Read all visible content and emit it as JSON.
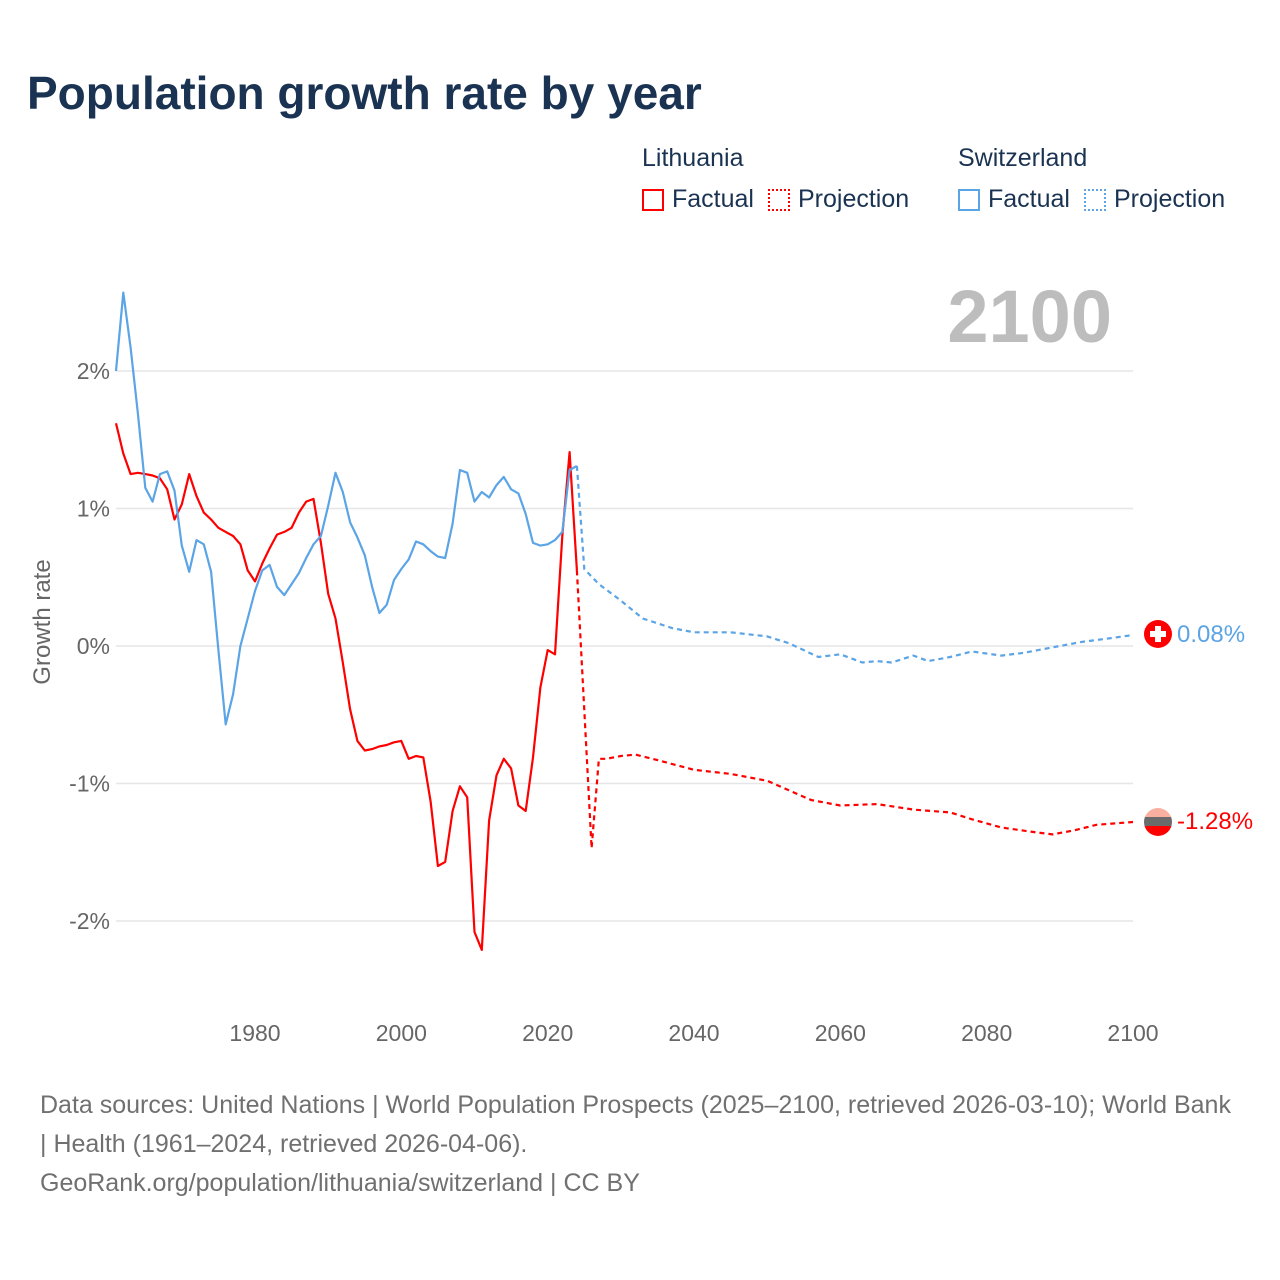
{
  "title": "Population growth rate by year",
  "legend": {
    "groups": [
      {
        "name": "Lithuania",
        "factual": "Factual",
        "projection": "Projection",
        "color": "#ff0000"
      },
      {
        "name": "Switzerland",
        "factual": "Factual",
        "projection": "Projection",
        "color": "#5ba4e6"
      }
    ]
  },
  "year_label": "2100",
  "end_labels": {
    "switzerland": "0.08%",
    "lithuania": "-1.28%"
  },
  "footer": {
    "sources": "Data sources: United Nations | World Population Prospects (2025–2100, retrieved 2026-03-10); World Bank | Health (1961–2024, retrieved 2026-04-06).",
    "link": "GeoRank.org/population/lithuania/switzerland | CC BY"
  },
  "chart_data": {
    "type": "line",
    "title": "Population growth rate by year",
    "xlabel": "",
    "ylabel": "Growth rate",
    "xlim": [
      1961,
      2100
    ],
    "ylim": [
      -2.5,
      2.7
    ],
    "x_ticks": [
      1980,
      2000,
      2020,
      2040,
      2060,
      2080,
      2100
    ],
    "x_tick_labels": [
      "1980",
      "2000",
      "2020",
      "2040",
      "2060",
      "2080",
      "2100"
    ],
    "y_ticks": [
      2,
      1,
      0,
      -1,
      -2
    ],
    "y_tick_labels": [
      "2%",
      "1%",
      "0%",
      "-1%",
      "-2%"
    ],
    "grid": true,
    "legend_position": "top-right",
    "series": [
      {
        "name": "Lithuania Factual",
        "color": "#ff0000",
        "style": "solid",
        "x": [
          1961,
          1962,
          1963,
          1964,
          1965,
          1966,
          1967,
          1968,
          1969,
          1970,
          1971,
          1972,
          1973,
          1974,
          1975,
          1976,
          1977,
          1978,
          1979,
          1980,
          1981,
          1982,
          1983,
          1984,
          1985,
          1986,
          1987,
          1988,
          1989,
          1990,
          1991,
          1992,
          1993,
          1994,
          1995,
          1996,
          1997,
          1998,
          1999,
          2000,
          2001,
          2002,
          2003,
          2004,
          2005,
          2006,
          2007,
          2008,
          2009,
          2010,
          2011,
          2012,
          2013,
          2014,
          2015,
          2016,
          2017,
          2018,
          2019,
          2020,
          2021,
          2022,
          2023,
          2024
        ],
        "values": [
          1.62,
          1.4,
          1.25,
          1.26,
          1.25,
          1.24,
          1.22,
          1.14,
          0.92,
          1.03,
          1.25,
          1.09,
          0.97,
          0.92,
          0.86,
          0.83,
          0.8,
          0.74,
          0.55,
          0.47,
          0.6,
          0.71,
          0.81,
          0.83,
          0.86,
          0.97,
          1.05,
          1.07,
          0.75,
          0.38,
          0.2,
          -0.12,
          -0.46,
          -0.69,
          -0.76,
          -0.75,
          -0.73,
          -0.72,
          -0.7,
          -0.69,
          -0.82,
          -0.8,
          -0.81,
          -1.13,
          -1.6,
          -1.57,
          -1.2,
          -1.02,
          -1.1,
          -2.08,
          -2.21,
          -1.27,
          -0.94,
          -0.82,
          -0.89,
          -1.16,
          -1.2,
          -0.81,
          -0.3,
          -0.03,
          -0.06,
          0.8,
          1.41,
          0.55
        ]
      },
      {
        "name": "Lithuania Projection",
        "color": "#ff0000",
        "style": "dotted",
        "x": [
          2024,
          2026,
          2027,
          2028,
          2030,
          2032,
          2035,
          2040,
          2045,
          2050,
          2053,
          2056,
          2060,
          2065,
          2070,
          2075,
          2078,
          2082,
          2086,
          2089,
          2092,
          2095,
          2100
        ],
        "values": [
          0.55,
          -1.47,
          -0.82,
          -0.82,
          -0.8,
          -0.79,
          -0.83,
          -0.9,
          -0.93,
          -0.98,
          -1.05,
          -1.12,
          -1.16,
          -1.15,
          -1.19,
          -1.21,
          -1.26,
          -1.32,
          -1.35,
          -1.37,
          -1.34,
          -1.3,
          -1.28
        ]
      },
      {
        "name": "Switzerland Factual",
        "color": "#5ba4e6",
        "style": "solid",
        "x": [
          1961,
          1962,
          1963,
          1964,
          1965,
          1966,
          1967,
          1968,
          1969,
          1970,
          1971,
          1972,
          1973,
          1974,
          1975,
          1976,
          1977,
          1978,
          1979,
          1980,
          1981,
          1982,
          1983,
          1984,
          1985,
          1986,
          1987,
          1988,
          1989,
          1990,
          1991,
          1992,
          1993,
          1994,
          1995,
          1996,
          1997,
          1998,
          1999,
          2000,
          2001,
          2002,
          2003,
          2004,
          2005,
          2006,
          2007,
          2008,
          2009,
          2010,
          2011,
          2012,
          2013,
          2014,
          2015,
          2016,
          2017,
          2018,
          2019,
          2020,
          2021,
          2022,
          2023,
          2024
        ],
        "values": [
          2.0,
          2.57,
          2.17,
          1.69,
          1.15,
          1.05,
          1.25,
          1.27,
          1.13,
          0.73,
          0.54,
          0.77,
          0.74,
          0.54,
          -0.03,
          -0.57,
          -0.35,
          0.0,
          0.2,
          0.4,
          0.55,
          0.59,
          0.43,
          0.37,
          0.45,
          0.53,
          0.64,
          0.74,
          0.8,
          1.02,
          1.26,
          1.12,
          0.9,
          0.79,
          0.66,
          0.43,
          0.24,
          0.3,
          0.48,
          0.56,
          0.63,
          0.76,
          0.74,
          0.69,
          0.65,
          0.64,
          0.89,
          1.28,
          1.26,
          1.05,
          1.12,
          1.08,
          1.17,
          1.23,
          1.14,
          1.11,
          0.96,
          0.75,
          0.73,
          0.74,
          0.77,
          0.83,
          1.28,
          1.31
        ]
      },
      {
        "name": "Switzerland Projection",
        "color": "#5ba4e6",
        "style": "dotted",
        "x": [
          2024,
          2025,
          2027,
          2030,
          2033,
          2037,
          2040,
          2045,
          2050,
          2053,
          2057,
          2060,
          2063,
          2065,
          2067,
          2070,
          2072,
          2075,
          2078,
          2082,
          2085,
          2090,
          2093,
          2096,
          2100
        ],
        "values": [
          1.31,
          0.56,
          0.45,
          0.33,
          0.2,
          0.13,
          0.1,
          0.1,
          0.07,
          0.02,
          -0.08,
          -0.06,
          -0.12,
          -0.11,
          -0.12,
          -0.07,
          -0.11,
          -0.08,
          -0.04,
          -0.07,
          -0.05,
          0.0,
          0.03,
          0.05,
          0.08
        ]
      }
    ]
  }
}
